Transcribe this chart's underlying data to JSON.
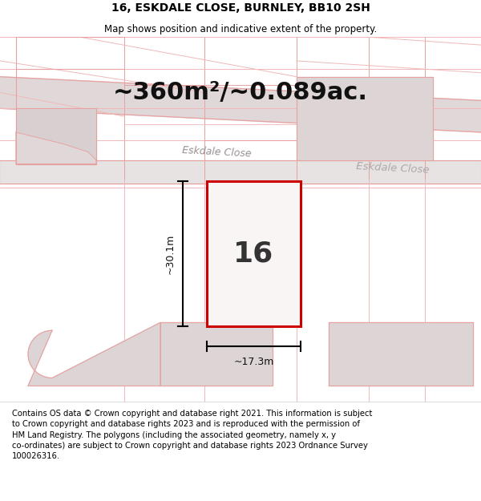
{
  "title": "16, ESKDALE CLOSE, BURNLEY, BB10 2SH",
  "subtitle": "Map shows position and indicative extent of the property.",
  "area_text": "~360m²/~0.089ac.",
  "number_label": "16",
  "width_label": "~17.3m",
  "height_label": "~30.1m",
  "street_label_1": "Eskdale Close",
  "street_label_2": "Eskdale Close",
  "footer_text": "Contains OS data © Crown copyright and database right 2021. This information is subject to Crown copyright and database rights 2023 and is reproduced with the permission of HM Land Registry. The polygons (including the associated geometry, namely x, y co-ordinates) are subject to Crown copyright and database rights 2023 Ordnance Survey 100026316.",
  "bg_map": "#f7f2f2",
  "plot_color": "#cc0000",
  "road_fill": "#d8d0d0",
  "pink_line": "#e8a0a0",
  "pink_line2": "#f0b8b8",
  "footer_bg": "#ffffff",
  "title_fontsize": 10,
  "subtitle_fontsize": 8.5,
  "area_fontsize": 22,
  "number_fontsize": 26,
  "footer_fontsize": 7.2
}
